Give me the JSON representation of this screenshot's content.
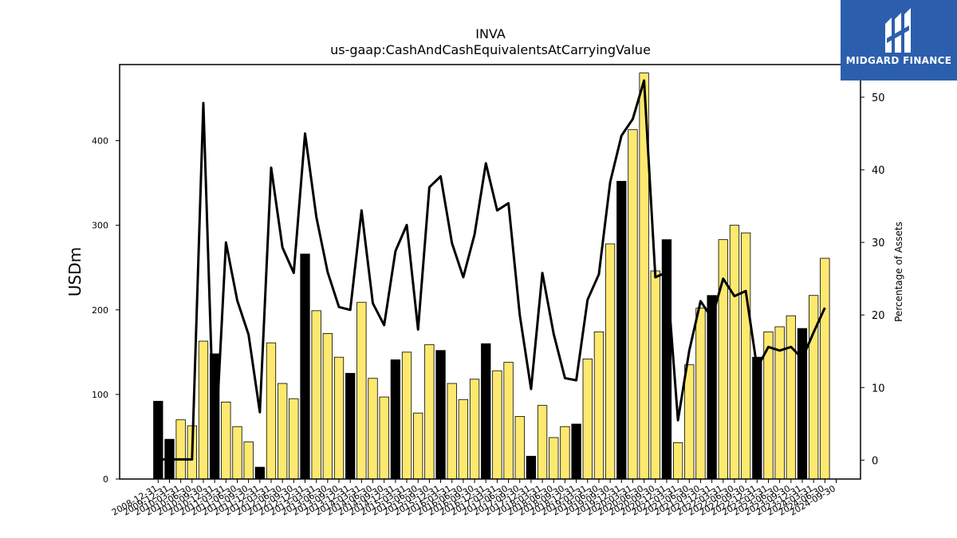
{
  "logo": {
    "text": "MIDGARD FINANCE"
  },
  "chart_data": {
    "type": "bar",
    "title": "INVA",
    "subtitle": "us-gaap:CashAndCashEquivalentsAtCarryingValue",
    "ylabel": "USDm",
    "y2label": "Percentage of Assets",
    "ylim": [
      0,
      490
    ],
    "y2lim": [
      -2.6,
      54.5
    ],
    "yticks": [
      0,
      100,
      200,
      300,
      400
    ],
    "y2ticks": [
      0,
      10,
      20,
      30,
      40,
      50
    ],
    "grid": false,
    "colors": {
      "q4_bar": "#000000",
      "other_bar": "#fde96f",
      "line": "#000000"
    },
    "categories": [
      "2008-12-31",
      "2009-12-31",
      "2010-03-31",
      "2010-06-30",
      "2010-09-30",
      "2010-12-31",
      "2011-03-31",
      "2011-06-30",
      "2011-09-30",
      "2011-12-31",
      "2012-03-31",
      "2012-06-30",
      "2012-09-30",
      "2012-12-31",
      "2013-03-31",
      "2013-06-30",
      "2013-09-30",
      "2013-12-31",
      "2014-03-31",
      "2014-06-30",
      "2014-09-30",
      "2014-12-31",
      "2015-03-31",
      "2015-06-30",
      "2015-09-30",
      "2015-12-31",
      "2016-03-31",
      "2016-06-30",
      "2016-09-30",
      "2016-12-31",
      "2017-03-31",
      "2017-06-30",
      "2017-09-30",
      "2017-12-31",
      "2018-03-31",
      "2018-06-30",
      "2018-09-30",
      "2018-12-31",
      "2019-03-31",
      "2019-06-30",
      "2019-09-30",
      "2019-12-31",
      "2020-03-31",
      "2020-06-30",
      "2020-09-30",
      "2020-12-31",
      "2021-03-31",
      "2021-06-30",
      "2021-09-30",
      "2021-12-31",
      "2022-03-31",
      "2022-06-30",
      "2022-09-30",
      "2022-12-31",
      "2023-03-31",
      "2023-06-30",
      "2023-09-30",
      "2023-12-31",
      "2024-03-31",
      "2024-06-30",
      "2024-09-30"
    ],
    "series": [
      {
        "type": "bar",
        "values": [
          92,
          47,
          70,
          63,
          163,
          148,
          91,
          62,
          44,
          14,
          161,
          113,
          95,
          266,
          199,
          172,
          144,
          125,
          209,
          119,
          97,
          141,
          150,
          78,
          159,
          152,
          113,
          94,
          118,
          160,
          128,
          138,
          74,
          27,
          87,
          49,
          62,
          65,
          142,
          174,
          278,
          352,
          413,
          480,
          246,
          283,
          43,
          135,
          202,
          217,
          283,
          300,
          291,
          144,
          174,
          180,
          193,
          178,
          217,
          261,
          0
        ]
      },
      {
        "type": "line",
        "axis": "right",
        "values": [
          0.1,
          0.1,
          0.1,
          0.1,
          49.2,
          0.1,
          30.0,
          22.0,
          17.3,
          6.6,
          40.3,
          29.3,
          25.8,
          45.0,
          33.5,
          25.9,
          21.1,
          20.7,
          34.4,
          21.6,
          18.6,
          28.8,
          32.4,
          18.0,
          37.6,
          39.1,
          29.9,
          25.2,
          31.1,
          40.9,
          34.4,
          35.4,
          20.0,
          9.8,
          25.8,
          17.4,
          11.3,
          11.0,
          22.1,
          25.6,
          38.3,
          44.7,
          47.0,
          52.3,
          25.2,
          25.9,
          5.5,
          15.1,
          21.9,
          19.6,
          25.0,
          22.6,
          23.3,
          12.7,
          15.6,
          15.1,
          15.6,
          14.0,
          17.6,
          21.0,
          null
        ]
      }
    ]
  }
}
